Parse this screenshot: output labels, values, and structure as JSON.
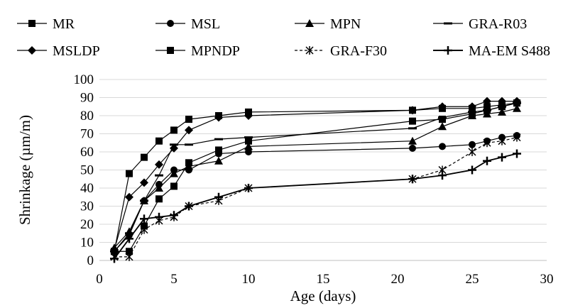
{
  "chart_data": {
    "type": "line",
    "title": "",
    "xlabel": "Age (days)",
    "ylabel": "Shrinkage  (µm/m)",
    "xlim": [
      0,
      30
    ],
    "ylim": [
      0,
      100
    ],
    "xticks": [
      0,
      5,
      10,
      15,
      20,
      25,
      30
    ],
    "yticks": [
      0,
      10,
      20,
      30,
      40,
      50,
      60,
      70,
      80,
      90,
      100
    ],
    "grid": "horizontal",
    "legend_position": "top",
    "series": [
      {
        "name": "MR",
        "marker": "square",
        "x": [
          1,
          2,
          3,
          4,
          5,
          6,
          8,
          10,
          21,
          23,
          25,
          26,
          27,
          28
        ],
        "y": [
          5,
          48,
          57,
          66,
          72,
          78,
          80,
          82,
          83,
          84,
          84,
          85,
          86,
          87
        ]
      },
      {
        "name": "MSL",
        "marker": "circle",
        "x": [
          1,
          2,
          3,
          4,
          5,
          6,
          8,
          10,
          21,
          23,
          25,
          26,
          27,
          28
        ],
        "y": [
          5,
          14,
          33,
          42,
          50,
          50,
          59,
          60,
          62,
          63,
          64,
          66,
          68,
          69
        ]
      },
      {
        "name": "MPN",
        "marker": "triangle",
        "x": [
          1,
          2,
          3,
          4,
          5,
          6,
          8,
          10,
          21,
          23,
          25,
          26,
          27,
          28
        ],
        "y": [
          7,
          16,
          33,
          40,
          48,
          52,
          55,
          63,
          66,
          74,
          80,
          81,
          82,
          84
        ]
      },
      {
        "name": "GRA-R03",
        "marker": "dash",
        "x": [
          1,
          2,
          3,
          4,
          5,
          6,
          8,
          10,
          21,
          23,
          25,
          26,
          27,
          28
        ],
        "y": [
          5,
          15,
          33,
          47,
          64,
          64,
          67,
          68,
          73,
          79,
          82,
          83,
          85,
          87
        ]
      },
      {
        "name": "MSLDP",
        "marker": "diamond",
        "x": [
          1,
          2,
          3,
          4,
          5,
          6,
          8,
          10,
          21,
          23,
          25,
          26,
          27,
          28
        ],
        "y": [
          6,
          35,
          43,
          53,
          62,
          72,
          79,
          80,
          83,
          85,
          85,
          88,
          88,
          88
        ]
      },
      {
        "name": "MPNDP",
        "marker": "square",
        "x": [
          1,
          2,
          3,
          4,
          5,
          6,
          8,
          10,
          21,
          23,
          25,
          26,
          27,
          28
        ],
        "y": [
          5,
          5,
          19,
          34,
          41,
          54,
          61,
          66,
          77,
          78,
          81,
          83,
          85,
          87
        ]
      },
      {
        "name": "GRA-F30",
        "marker": "star",
        "x": [
          1,
          2,
          3,
          4,
          5,
          6,
          8,
          10,
          21,
          23,
          25,
          26,
          27,
          28
        ],
        "y": [
          2,
          2,
          17,
          22,
          24,
          30,
          33,
          40,
          45,
          50,
          60,
          65,
          66,
          68
        ]
      },
      {
        "name": "MA-EM S488",
        "marker": "plus",
        "x": [
          1,
          2,
          3,
          4,
          5,
          6,
          8,
          10,
          21,
          23,
          25,
          26,
          27,
          28
        ],
        "y": [
          1,
          12,
          23,
          24,
          25,
          30,
          35,
          40,
          45,
          47,
          50,
          55,
          57,
          59
        ]
      }
    ]
  }
}
